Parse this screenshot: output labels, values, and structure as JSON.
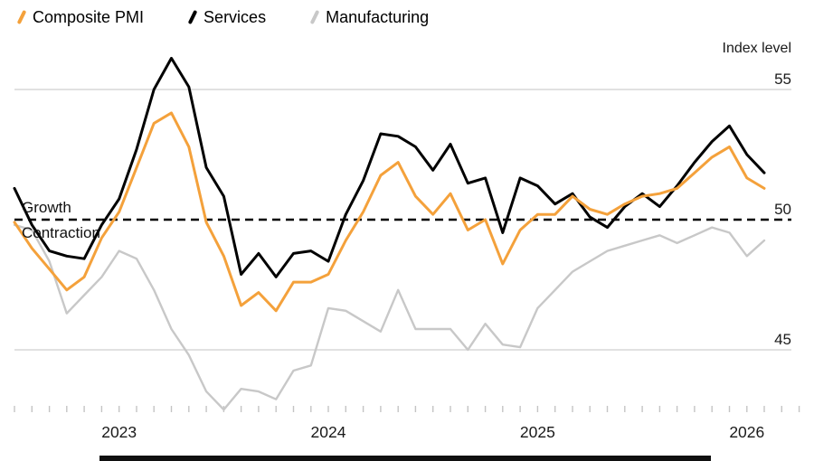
{
  "annotations": {
    "growth_label": "Growth",
    "contraction_label": "Contraction",
    "axis_title": "Index level"
  },
  "colors": {
    "gridline": "#CFCFCF",
    "baseline": "#000000",
    "tick": "#C4C4C4",
    "text": "#1A1A1A"
  },
  "chart_data": {
    "type": "line",
    "title": "",
    "ylabel": "Index level",
    "legend_position": "top-left",
    "grid": "horizontal",
    "ylim": [
      42,
      57
    ],
    "yticks": [
      45,
      50,
      55
    ],
    "baseline_value": 50,
    "x": [
      "2022-07",
      "2022-08",
      "2022-09",
      "2022-10",
      "2022-11",
      "2022-12",
      "2023-01",
      "2023-02",
      "2023-03",
      "2023-04",
      "2023-05",
      "2023-06",
      "2023-07",
      "2023-08",
      "2023-09",
      "2023-10",
      "2023-11",
      "2023-12",
      "2024-01",
      "2024-02",
      "2024-03",
      "2024-04",
      "2024-05",
      "2024-06",
      "2024-07",
      "2024-08",
      "2024-09",
      "2024-10",
      "2024-11",
      "2024-12",
      "2025-01",
      "2025-02",
      "2025-03",
      "2025-04",
      "2025-05",
      "2025-06",
      "2025-07",
      "2025-08",
      "2025-09",
      "2025-10",
      "2025-11",
      "2025-12",
      "2026-01",
      "2026-02"
    ],
    "x_year_labels": [
      {
        "label": "2023",
        "index": 6
      },
      {
        "label": "2024",
        "index": 18
      },
      {
        "label": "2025",
        "index": 30
      },
      {
        "label": "2026",
        "index": 42
      }
    ],
    "series": [
      {
        "name": "Composite PMI",
        "color": "#F4A13B",
        "values": [
          49.9,
          48.9,
          48.1,
          47.3,
          47.8,
          49.3,
          50.3,
          52.0,
          53.7,
          54.1,
          52.8,
          49.9,
          48.6,
          46.7,
          47.2,
          46.5,
          47.6,
          47.6,
          47.9,
          49.2,
          50.3,
          51.7,
          52.2,
          50.9,
          50.2,
          51.0,
          49.6,
          50.0,
          48.3,
          49.6,
          50.2,
          50.2,
          50.9,
          50.4,
          50.2,
          50.6,
          50.9,
          51.0,
          51.2,
          51.8,
          52.4,
          52.8,
          51.6,
          51.2
        ]
      },
      {
        "name": "Services",
        "color": "#000000",
        "values": [
          51.2,
          49.8,
          48.8,
          48.6,
          48.5,
          49.8,
          50.8,
          52.7,
          55.0,
          56.2,
          55.1,
          52.0,
          50.9,
          47.9,
          48.7,
          47.8,
          48.7,
          48.8,
          48.4,
          50.2,
          51.5,
          53.3,
          53.2,
          52.8,
          51.9,
          52.9,
          51.4,
          51.6,
          49.5,
          51.6,
          51.3,
          50.6,
          51.0,
          50.1,
          49.7,
          50.5,
          51.0,
          50.5,
          51.3,
          52.2,
          53.0,
          53.6,
          52.5,
          51.8
        ]
      },
      {
        "name": "Manufacturing",
        "color": "#C8C8C8",
        "values": [
          49.8,
          49.6,
          48.4,
          46.4,
          47.1,
          47.8,
          48.8,
          48.5,
          47.3,
          45.8,
          44.8,
          43.4,
          42.7,
          43.5,
          43.4,
          43.1,
          44.2,
          44.4,
          46.6,
          46.5,
          46.1,
          45.7,
          47.3,
          45.8,
          45.8,
          45.8,
          45.0,
          46.0,
          45.2,
          45.1,
          46.6,
          47.3,
          48.0,
          48.4,
          48.8,
          49.0,
          49.2,
          49.4,
          49.1,
          49.4,
          49.7,
          49.5,
          48.6,
          49.2
        ]
      }
    ]
  }
}
